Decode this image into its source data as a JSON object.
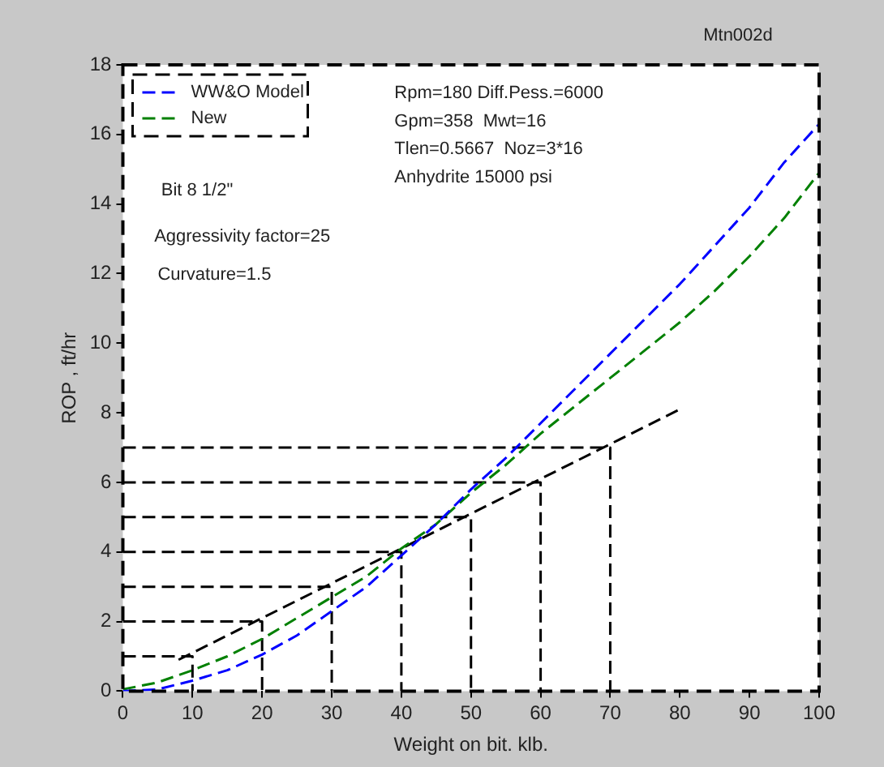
{
  "chart_data": {
    "type": "line",
    "title": "Mtn002d",
    "xlabel": "Weight on bit. klb.",
    "ylabel": "ROP , ft/hr",
    "annotations": [
      "Rpm=180 Diff.Pess.=6000",
      "Gpm=358  Mwt=16",
      "Tlen=0.5667  Noz=3*16",
      "Anhydrite 15000 psi",
      "Bit 8 1/2\"",
      "Aggressivity factor=25",
      "Curvature=1.5"
    ],
    "x": [
      0,
      5,
      10,
      15,
      20,
      25,
      30,
      35,
      40,
      45,
      50,
      55,
      60,
      65,
      70,
      75,
      80,
      85,
      90,
      95,
      100
    ],
    "series": [
      {
        "name": "WW&O Model",
        "color": "#0000ff",
        "values": [
          0,
          0.05,
          0.3,
          0.6,
          1.05,
          1.6,
          2.3,
          3.0,
          3.9,
          4.8,
          5.8,
          6.7,
          7.7,
          8.7,
          9.7,
          10.7,
          11.7,
          12.8,
          13.9,
          15.2,
          16.3
        ]
      },
      {
        "name": "New",
        "color": "#008000",
        "values": [
          0.05,
          0.25,
          0.6,
          1.0,
          1.5,
          2.1,
          2.7,
          3.3,
          4.1,
          4.8,
          5.7,
          6.5,
          7.4,
          8.2,
          9.0,
          9.8,
          10.6,
          11.5,
          12.5,
          13.6,
          14.9
        ]
      },
      {
        "color": "#000000",
        "x": [
          8,
          80
        ],
        "values": [
          0.9,
          8.1
        ]
      },
      {
        "color": "#000000",
        "x": [
          0,
          10,
          10
        ],
        "values": [
          1,
          1,
          0
        ]
      },
      {
        "color": "#000000",
        "x": [
          0,
          20,
          20
        ],
        "values": [
          2,
          2,
          0
        ]
      },
      {
        "color": "#000000",
        "x": [
          0,
          30,
          30
        ],
        "values": [
          3,
          3,
          0
        ]
      },
      {
        "color": "#000000",
        "x": [
          0,
          40,
          40
        ],
        "values": [
          4,
          4,
          0
        ]
      },
      {
        "color": "#000000",
        "x": [
          0,
          50,
          50
        ],
        "values": [
          5,
          5,
          0
        ]
      },
      {
        "color": "#000000",
        "x": [
          0,
          60,
          60
        ],
        "values": [
          6,
          6,
          0
        ]
      },
      {
        "color": "#000000",
        "x": [
          0,
          70,
          70
        ],
        "values": [
          7,
          7,
          0
        ]
      }
    ],
    "xlim": [
      0,
      100
    ],
    "ylim": [
      0,
      18
    ],
    "xticks": [
      0,
      10,
      20,
      30,
      40,
      50,
      60,
      70,
      80,
      90,
      100
    ],
    "yticks": [
      0,
      2,
      4,
      6,
      8,
      10,
      12,
      14,
      16,
      18
    ],
    "grid": false,
    "legend": "top left",
    "line_style": "dashed",
    "marker": "none"
  }
}
